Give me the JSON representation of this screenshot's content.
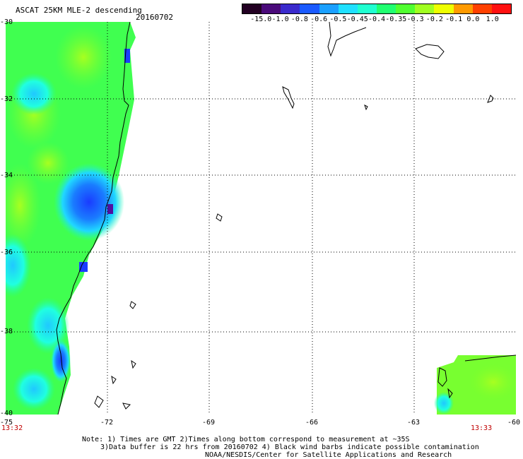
{
  "header": {
    "title": "ASCAT 25KM MLE-2 descending",
    "date": "20160702"
  },
  "colorbar": {
    "labels": [
      "-15.0",
      "-1.0",
      "-0.8",
      "-0.6",
      "-0.5",
      "-0.45",
      "-0.4",
      "-0.35",
      "-0.3",
      "-0.2",
      "-0.1",
      "0.0",
      "1.0"
    ],
    "colors": [
      "#220022",
      "#4a0a7a",
      "#3a2acc",
      "#1a5aff",
      "#1aa0ff",
      "#20e0ff",
      "#20ffd0",
      "#20ff70",
      "#50ff30",
      "#a0ff20",
      "#eeff00",
      "#ff9a00",
      "#ff4000",
      "#ff1010"
    ]
  },
  "axes": {
    "lat_labels": [
      "-30",
      "-32",
      "-34",
      "-36",
      "-38",
      "-40"
    ],
    "lon_labels": [
      "-75",
      "-72",
      "-69",
      "-66",
      "-63",
      "-60"
    ]
  },
  "times": {
    "left": "13:32",
    "right": "13:33"
  },
  "notes": {
    "line1": "Note: 1) Times are GMT 2)Times along bottom correspond to measurement at ~35S",
    "line2": "3)Data buffer is 22 hrs from 20160702 4) Black wind barbs indicate possible contamination",
    "line3": "NOAA/NESDIS/Center for Satellite Applications and Research"
  }
}
